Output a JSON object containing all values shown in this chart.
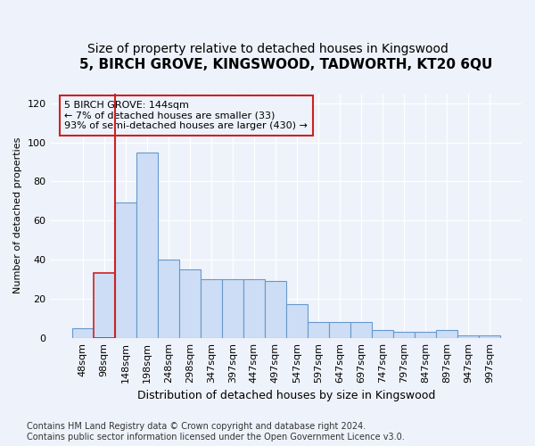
{
  "title": "5, BIRCH GROVE, KINGSWOOD, TADWORTH, KT20 6QU",
  "subtitle": "Size of property relative to detached houses in Kingswood",
  "xlabel": "Distribution of detached houses by size in Kingswood",
  "ylabel": "Number of detached properties",
  "bar_values": [
    5,
    33,
    69,
    95,
    40,
    35,
    30,
    30,
    30,
    29,
    17,
    8,
    8,
    8,
    4,
    3,
    3,
    4,
    1,
    1
  ],
  "bar_labels": [
    "48sqm",
    "98sqm",
    "148sqm",
    "198sqm",
    "248sqm",
    "298sqm",
    "347sqm",
    "397sqm",
    "447sqm",
    "497sqm",
    "547sqm",
    "597sqm",
    "647sqm",
    "697sqm",
    "747sqm",
    "797sqm",
    "847sqm",
    "897sqm",
    "947sqm",
    "997sqm"
  ],
  "bar_color": "#ccddf5",
  "bar_edge_color": "#6699cc",
  "highlight_bar_index": 1,
  "highlight_edge_color": "#cc2222",
  "vline_color": "#cc2222",
  "annotation_text": "5 BIRCH GROVE: 144sqm\n← 7% of detached houses are smaller (33)\n93% of semi-detached houses are larger (430) →",
  "ylim": [
    0,
    125
  ],
  "yticks": [
    0,
    20,
    40,
    60,
    80,
    100,
    120
  ],
  "bg_color": "#eef2fa",
  "footer_text": "Contains HM Land Registry data © Crown copyright and database right 2024.\nContains public sector information licensed under the Open Government Licence v3.0.",
  "title_fontsize": 11,
  "subtitle_fontsize": 10,
  "ylabel_fontsize": 8,
  "xlabel_fontsize": 9,
  "tick_fontsize": 8,
  "annot_fontsize": 8,
  "footer_fontsize": 7
}
